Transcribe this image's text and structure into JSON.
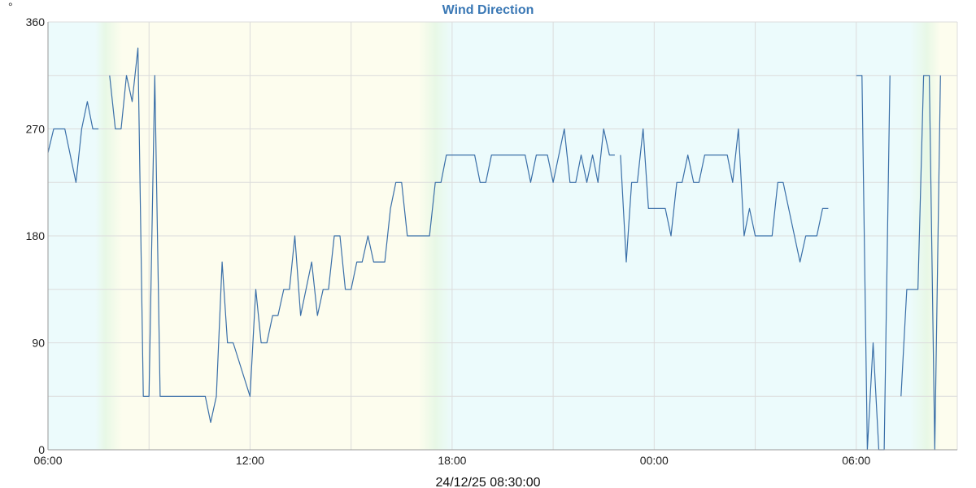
{
  "chart_data": {
    "type": "line",
    "title": "Wind Direction",
    "unit_label": "°",
    "timestamp_label": "24/12/25 08:30:00",
    "ylim": [
      0,
      360
    ],
    "y_ticks": [
      0,
      90,
      180,
      270,
      360
    ],
    "x_tick_labels": [
      "06:00",
      "12:00",
      "18:00",
      "00:00",
      "06:00"
    ],
    "x_range_hours": [
      0,
      27
    ],
    "grid": true,
    "colors": {
      "line": "#3a6fa8",
      "title": "#3a78b5",
      "grid": "#dcdcdc",
      "night": "#ecfbfc",
      "day": "#fdfdee",
      "twilight": "#e8f8e6"
    },
    "shading": {
      "night_end": 1.4,
      "twilight_mid": 1.7,
      "day_start": 2.2,
      "day_end": 11.0,
      "twilight2_mid": 11.5,
      "night_start": 12.0,
      "night2_end": 25.6,
      "twilight3_mid": 26.1,
      "day2_start": 26.5
    },
    "series": [
      {
        "segments": [
          [
            [
              0.0,
              250
            ],
            [
              0.17,
              270
            ],
            [
              0.5,
              270
            ],
            [
              0.83,
              225
            ],
            [
              1.0,
              270
            ],
            [
              1.17,
              293
            ],
            [
              1.33,
              270
            ],
            [
              1.5,
              270
            ]
          ],
          [
            [
              1.83,
              315
            ],
            [
              2.0,
              270
            ],
            [
              2.17,
              270
            ],
            [
              2.33,
              315
            ],
            [
              2.5,
              293
            ],
            [
              2.67,
              338
            ],
            [
              2.83,
              45
            ],
            [
              3.0,
              45
            ],
            [
              3.17,
              315
            ],
            [
              3.33,
              45
            ],
            [
              4.67,
              45
            ],
            [
              4.83,
              23
            ],
            [
              5.0,
              45
            ],
            [
              5.17,
              158
            ],
            [
              5.33,
              90
            ],
            [
              5.5,
              90
            ],
            [
              6.0,
              45
            ],
            [
              6.17,
              135
            ],
            [
              6.33,
              90
            ],
            [
              6.5,
              90
            ],
            [
              6.67,
              113
            ],
            [
              6.83,
              113
            ],
            [
              7.0,
              135
            ],
            [
              7.17,
              135
            ],
            [
              7.33,
              180
            ],
            [
              7.5,
              113
            ],
            [
              7.83,
              158
            ],
            [
              8.0,
              113
            ],
            [
              8.17,
              135
            ],
            [
              8.33,
              135
            ],
            [
              8.5,
              180
            ],
            [
              8.67,
              180
            ],
            [
              8.83,
              135
            ],
            [
              9.0,
              135
            ],
            [
              9.17,
              158
            ],
            [
              9.33,
              158
            ],
            [
              9.5,
              180
            ],
            [
              9.67,
              158
            ],
            [
              10.0,
              158
            ],
            [
              10.17,
              203
            ],
            [
              10.33,
              225
            ],
            [
              10.5,
              225
            ],
            [
              10.67,
              180
            ],
            [
              11.33,
              180
            ],
            [
              11.5,
              225
            ],
            [
              11.67,
              225
            ],
            [
              11.83,
              248
            ],
            [
              12.67,
              248
            ],
            [
              12.83,
              225
            ],
            [
              13.0,
              225
            ],
            [
              13.17,
              248
            ],
            [
              14.17,
              248
            ],
            [
              14.33,
              225
            ],
            [
              14.5,
              248
            ],
            [
              14.83,
              248
            ],
            [
              15.0,
              225
            ],
            [
              15.33,
              270
            ],
            [
              15.5,
              225
            ],
            [
              15.67,
              225
            ],
            [
              15.83,
              248
            ],
            [
              16.0,
              225
            ],
            [
              16.17,
              248
            ],
            [
              16.33,
              225
            ],
            [
              16.5,
              270
            ],
            [
              16.67,
              248
            ],
            [
              16.83,
              248
            ]
          ],
          [
            [
              17.0,
              248
            ],
            [
              17.17,
              158
            ],
            [
              17.33,
              225
            ],
            [
              17.5,
              225
            ],
            [
              17.67,
              270
            ],
            [
              17.83,
              203
            ],
            [
              18.33,
              203
            ],
            [
              18.5,
              180
            ],
            [
              18.67,
              225
            ],
            [
              18.83,
              225
            ],
            [
              19.0,
              248
            ],
            [
              19.17,
              225
            ],
            [
              19.33,
              225
            ],
            [
              19.5,
              248
            ],
            [
              20.17,
              248
            ],
            [
              20.33,
              225
            ],
            [
              20.5,
              270
            ],
            [
              20.67,
              180
            ],
            [
              20.83,
              203
            ],
            [
              21.0,
              180
            ],
            [
              21.5,
              180
            ],
            [
              21.67,
              225
            ],
            [
              21.83,
              225
            ],
            [
              22.33,
              158
            ],
            [
              22.5,
              180
            ],
            [
              22.83,
              180
            ],
            [
              23.0,
              203
            ],
            [
              23.17,
              203
            ]
          ],
          [
            [
              24.0,
              315
            ],
            [
              24.17,
              315
            ],
            [
              24.33,
              0
            ],
            [
              24.5,
              90
            ],
            [
              24.67,
              0
            ],
            [
              24.83,
              0
            ],
            [
              25.0,
              315
            ]
          ],
          [
            [
              25.33,
              45
            ],
            [
              25.5,
              135
            ],
            [
              25.83,
              135
            ],
            [
              26.0,
              315
            ],
            [
              26.17,
              315
            ],
            [
              26.33,
              0
            ],
            [
              26.5,
              315
            ]
          ]
        ]
      }
    ]
  }
}
